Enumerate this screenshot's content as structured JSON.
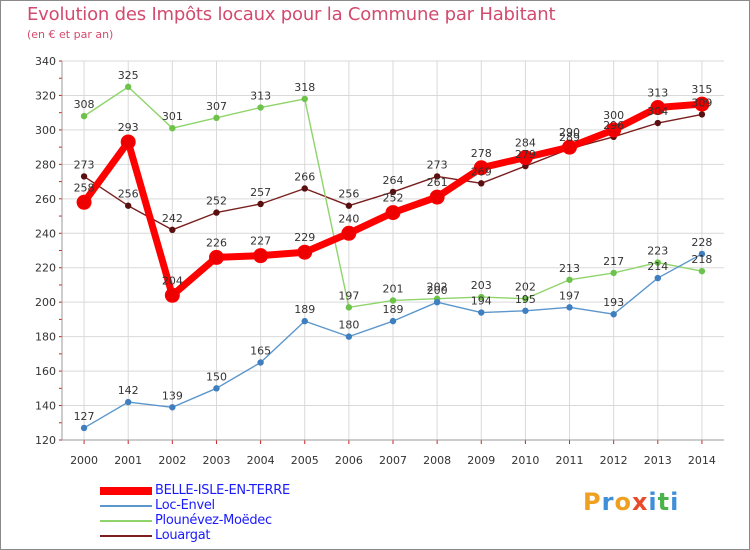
{
  "title": "Evolution des Impôts locaux pour la Commune par Habitant",
  "subtitle": "(en € et par an)",
  "logo": {
    "letters": [
      "P",
      "r",
      "o",
      "x",
      "i",
      "t",
      "i"
    ],
    "colors": [
      "#f0a020",
      "#3f8fd8",
      "#f0a020",
      "#e84a2a",
      "#3f8fd8",
      "#4bb34b",
      "#3f8fd8"
    ]
  },
  "chart_data": {
    "type": "line",
    "title": "Evolution des Impôts locaux pour la Commune par Habitant",
    "subtitle": "(en € et par an)",
    "xlabel": "",
    "ylabel": "",
    "x": [
      2000,
      2001,
      2002,
      2003,
      2004,
      2005,
      2006,
      2007,
      2008,
      2009,
      2010,
      2011,
      2012,
      2013,
      2014
    ],
    "x_tick_labels": [
      "2000",
      "2001",
      "2002",
      "2003",
      "2004",
      "2005",
      "2006",
      "2007",
      "2008",
      "2009",
      "2010",
      "2011",
      "2012",
      "2013",
      "2014"
    ],
    "ylim": [
      120,
      340
    ],
    "y_ticks": [
      120,
      140,
      160,
      180,
      200,
      220,
      240,
      260,
      280,
      300,
      320,
      340
    ],
    "y_tick_labels": [
      "120",
      "140",
      "160",
      "180",
      "200",
      "220",
      "240",
      "260",
      "280",
      "300",
      "320",
      "340"
    ],
    "grid": true,
    "legend_position": "bottom-left",
    "series": [
      {
        "name": "Louargat",
        "color": "#7a1e1e",
        "marker_color": "#5a1010",
        "emphasis": false,
        "values": [
          273,
          256,
          242,
          252,
          257,
          266,
          256,
          264,
          273,
          269,
          279,
          289,
          296,
          304,
          309
        ],
        "labels": [
          "273",
          "256",
          "242",
          "252",
          "257",
          "266",
          "256",
          "264",
          "273",
          "269",
          "279",
          "289",
          "296",
          "304",
          "309"
        ]
      },
      {
        "name": "Plounévez-Moëdec",
        "color": "#8fd46b",
        "marker_color": "#6cc24a",
        "emphasis": false,
        "values": [
          308,
          325,
          301,
          307,
          313,
          318,
          197,
          201,
          202,
          203,
          202,
          213,
          217,
          223,
          218
        ],
        "labels": [
          "308",
          "325",
          "301",
          "307",
          "313",
          "318",
          "197",
          "201",
          "202",
          "203",
          "202",
          "213",
          "217",
          "223",
          "218"
        ]
      },
      {
        "name": "Loc-Envel",
        "color": "#5b96cc",
        "marker_color": "#3f7fbf",
        "emphasis": false,
        "values": [
          127,
          142,
          139,
          150,
          165,
          189,
          180,
          189,
          200,
          194,
          195,
          197,
          193,
          214,
          228
        ],
        "labels": [
          "127",
          "142",
          "139",
          "150",
          "165",
          "189",
          "180",
          "189",
          "200",
          "194",
          "195",
          "197",
          "193",
          "214",
          "228"
        ]
      },
      {
        "name": "BELLE-ISLE-EN-TERRE",
        "color": "#ff0000",
        "marker_color": "#ee0000",
        "emphasis": true,
        "values": [
          258,
          293,
          204,
          226,
          227,
          229,
          240,
          252,
          261,
          278,
          284,
          290,
          300,
          313,
          315
        ],
        "labels": [
          "258",
          "293",
          "204",
          "226",
          "227",
          "229",
          "240",
          "252",
          "261",
          "278",
          "284",
          "290",
          "300",
          "313",
          "315"
        ]
      }
    ],
    "legend": [
      {
        "name": "BELLE-ISLE-EN-TERRE",
        "color": "#ff0000",
        "text_color": "#1a1aff"
      },
      {
        "name": "Loc-Envel",
        "color": "#5b96cc",
        "text_color": "#1a1aff"
      },
      {
        "name": "Plounévez-Moëdec",
        "color": "#8fd46b",
        "text_color": "#1a1aff"
      },
      {
        "name": "Louargat",
        "color": "#7a1e1e",
        "text_color": "#1a1aff"
      }
    ]
  }
}
